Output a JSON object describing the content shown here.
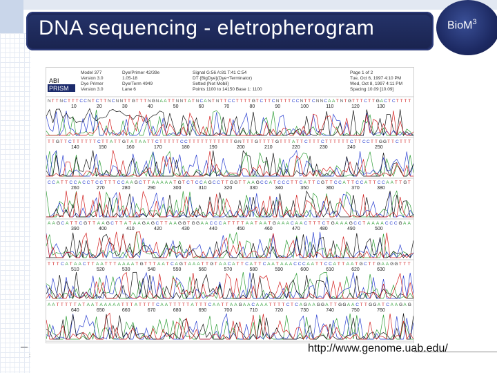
{
  "slide": {
    "title": "DNA sequencing - eletropherogram",
    "logo_text": "BioM",
    "logo_sup": "3",
    "url": "http://www.genome.uab.edu/",
    "page_marker": ":"
  },
  "header_block": {
    "brand_line1": "ABI",
    "brand_line2": "PRISM",
    "col1": [
      "Model 377",
      "Version 3.0",
      "Dye Primer",
      "Version 3.0"
    ],
    "col2": [
      "Dye/Primer 42/39e",
      "1.05-18",
      "Dye/Term 4949",
      "Lane 6"
    ],
    "col3": [
      "Signal G:56 A:81 T:41 C:54",
      "DT {BigDye}(Dye+Terminator)",
      "Setted {Not Mobil}",
      "Points 1100 to 14150  Base 1: 1100"
    ],
    "col4": [
      "Page 1 of 2",
      "Tue, Oct 6, 1997 4:10 PM",
      "Wed, Oct 8, 1997 4:11 PM",
      "Spacing 10.09 [10.09]"
    ]
  },
  "colors": {
    "title_bg": "#1f2a5c",
    "A": "#2e9e36",
    "C": "#2a3fd0",
    "G": "#111111",
    "T": "#d21f1f",
    "base_text": "#333333"
  },
  "rows": [
    {
      "seq": "NTTNCTTTCCNTCTTNCNNTTGTTTNGNAATTNNTATNCANTNTTCCTTTTGTCTTCNTTTCCNTTCNNCAATNTGTTTCTTGACTCTTTT",
      "positions": [
        "10",
        "20",
        "30",
        "40",
        "50",
        "60",
        "70",
        "80",
        "90",
        "100",
        "110",
        "120",
        "130"
      ]
    },
    {
      "seq": "TTGTTCTTTTTTCTTATTGTATAATTCTTTTTCCTTTTTTTTTTTGNTTTGTTTTGTTTATTCTTTCTTTTTTCTTCCTTGGTTCTTT",
      "positions": [
        "140",
        "150",
        "160",
        "170",
        "180",
        "190",
        "200",
        "210",
        "220",
        "230",
        "240",
        "250"
      ]
    },
    {
      "seq": "CCATTCCACCTCCTTTCCAAGCTTAAAAATGTCTCCAGCCTTGGTTAAGCCATCCCTTCATTCGTTCCATTCCATTCCAATTGT",
      "positions": [
        "260",
        "270",
        "280",
        "290",
        "300",
        "310",
        "320",
        "330",
        "340",
        "350",
        "360",
        "370",
        "380"
      ]
    },
    {
      "seq": "AAGCATTCGTTAAGCTTATAAGAGCTTAAGGTGGAACCCATTTTAATAATGAAACAACTTTCTGAAAGCCTAAAACCCGAA",
      "positions": [
        "390",
        "400",
        "410",
        "420",
        "430",
        "440",
        "450",
        "460",
        "470",
        "480",
        "490",
        "500"
      ]
    },
    {
      "seq": "TTTCATAACTTAATTTAAAATGTTTAATCAGTAAATTGTAACATTCATTCAATAAACCCAATTCCATTAATGCTTGAAGGTTT",
      "positions": [
        "510",
        "520",
        "530",
        "540",
        "550",
        "560",
        "570",
        "580",
        "590",
        "600",
        "610",
        "620",
        "630"
      ]
    },
    {
      "seq": "AATTTTTATAATAAAAATTTATTTTCAATTTTTATTTCAATTAAGAACAAATTTTCTCAGAAGGATTGGAACTTGGATCAAGAG",
      "positions": [
        "640",
        "650",
        "660",
        "670",
        "680",
        "690",
        "700",
        "710",
        "720",
        "730",
        "740",
        "750",
        "760"
      ]
    }
  ]
}
